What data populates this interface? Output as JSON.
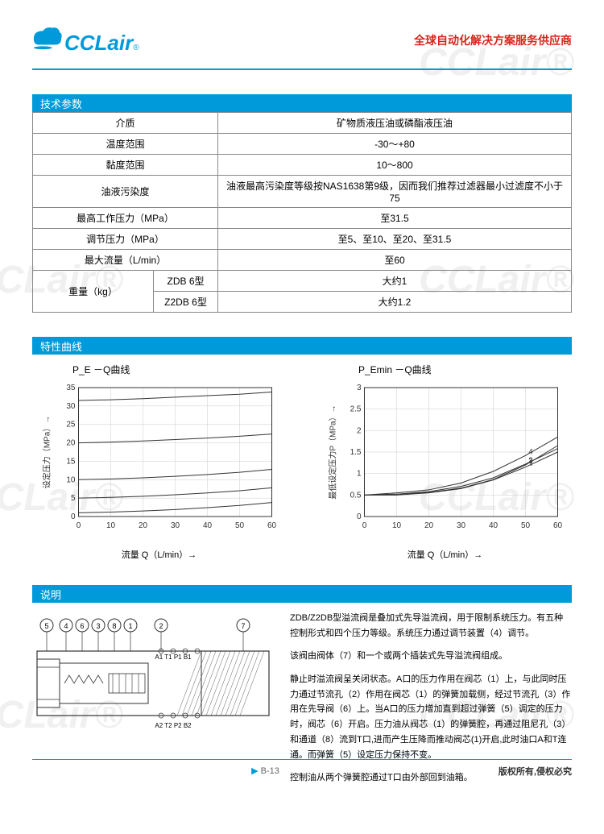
{
  "header": {
    "logo_text": "CCLair",
    "slogan": "全球自动化解决方案服务供应商"
  },
  "sections": {
    "spec_title": "技术参数",
    "curve_title": "特性曲线",
    "desc_title": "说明"
  },
  "spec_table": {
    "rows": [
      {
        "label": "介质",
        "value": "矿物质液压油或磷酯液压油"
      },
      {
        "label": "温度范围",
        "value": "-30～+80"
      },
      {
        "label": "黏度范围",
        "value": "10～800"
      },
      {
        "label": "油液污染度",
        "value": "油液最高污染度等级按NAS1638第9级，因而我们推荐过滤器最小过滤度不小于75"
      },
      {
        "label": "最高工作压力（MPa）",
        "value": "至31.5"
      },
      {
        "label": "调节压力（MPa）",
        "value": "至5、至10、至20、至31.5"
      },
      {
        "label": "最大流量（L/min）",
        "value": "至60"
      }
    ],
    "weight_label": "重量（kg）",
    "weight_rows": [
      {
        "sub": "ZDB 6型",
        "value": "大约1"
      },
      {
        "sub": "Z2DB 6型",
        "value": "大约1.2"
      }
    ]
  },
  "chart1": {
    "title": "P_E －Q曲线",
    "ylabel": "设定压力（MPa）→",
    "xlabel": "流量 Q（L/min）→",
    "xlim": [
      0,
      60
    ],
    "xtick_step": 10,
    "ylim": [
      0,
      35
    ],
    "ytick_step": 5,
    "grid_color": "#cccccc",
    "axis_color": "#333333",
    "line_color": "#333333",
    "series": [
      {
        "y": [
          31.5,
          31.7,
          32.0,
          32.4,
          32.8,
          33.2,
          33.8
        ]
      },
      {
        "y": [
          20,
          20.2,
          20.5,
          20.9,
          21.3,
          21.8,
          22.4
        ]
      },
      {
        "y": [
          10,
          10.2,
          10.5,
          10.9,
          11.4,
          12.0,
          12.8
        ]
      },
      {
        "y": [
          5,
          5.2,
          5.5,
          5.9,
          6.4,
          7.0,
          7.8
        ]
      },
      {
        "y": [
          1,
          1.2,
          1.5,
          1.9,
          2.4,
          3.0,
          3.8
        ]
      }
    ]
  },
  "chart2": {
    "title": "P_Emin －Q曲线",
    "ylabel": "最低设定压力P（MPa）→",
    "xlabel": "流量 Q（L/min）→",
    "xlim": [
      0,
      60
    ],
    "xtick_step": 10,
    "ylim": [
      0,
      3.0
    ],
    "ytick_step": 0.5,
    "grid_color": "#cccccc",
    "axis_color": "#333333",
    "line_color": "#333333",
    "series_labels": [
      "1",
      "2",
      "3",
      "4"
    ],
    "series": [
      {
        "label": "1",
        "y": [
          0.5,
          0.5,
          0.55,
          0.65,
          0.85,
          1.15,
          1.5
        ]
      },
      {
        "label": "2",
        "y": [
          0.5,
          0.52,
          0.58,
          0.7,
          0.9,
          1.22,
          1.58
        ]
      },
      {
        "label": "3",
        "y": [
          0.5,
          0.52,
          0.56,
          0.66,
          0.86,
          1.2,
          1.65
        ]
      },
      {
        "label": "4",
        "y": [
          0.5,
          0.55,
          0.62,
          0.78,
          1.05,
          1.42,
          1.85
        ]
      }
    ]
  },
  "diagram": {
    "circles": [
      "5",
      "4",
      "6",
      "3",
      "8",
      "1",
      "2",
      "7"
    ],
    "port_top": "A1 T1 P1 B1",
    "port_bottom": "A2  T2 P2  B2"
  },
  "description": {
    "p1": "ZDB/Z2DB型溢流阀是叠加式先导溢流阀，用于限制系统压力。有五种控制形式和四个压力等级。系统压力通过调节装置（4）调节。",
    "p2": "该阀由阀体（7）和一个或两个插装式先导溢流阀组成。",
    "p3": "静止时溢流阀呈关闭状态。A口的压力作用在阀芯（1）上，与此同时压力通过节流孔（2）作用在阀芯（1）的弹簧加载侧，经过节流孔（3）作用在先导阀（6）上。当A口的压力增加直到超过弹簧（5）调定的压力时，阀芯（6）开启。压力油从阀芯（1）的弹簧腔，再通过阻尼孔（3）和通道（8）流到T口,进而产生压降而推动阀芯(1)开启,此时油口A和T连通。而弹簧（5）设定压力保持不变。",
    "p4": "控制油从两个弹簧腔通过T口由外部回到油箱。"
  },
  "footer": {
    "page": "B-13",
    "copyright": "版权所有,侵权必究"
  },
  "watermark_text": "CCLair®"
}
